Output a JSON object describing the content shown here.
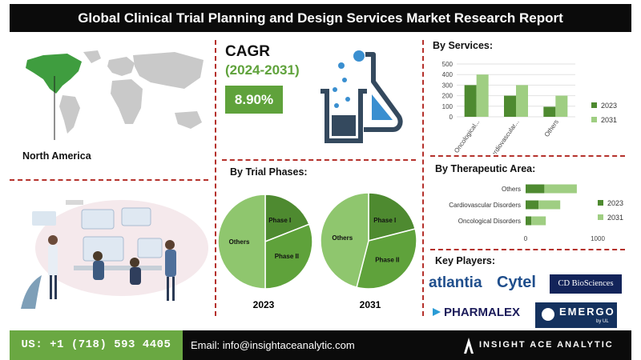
{
  "header": {
    "title": "Global Clinical Trial Planning and Design Services Market Research Report"
  },
  "region": {
    "label": "North America"
  },
  "cagr": {
    "title": "CAGR",
    "years": "(2024-2031)",
    "value": "8.90%"
  },
  "trial_phases": {
    "title": "By Trial Phases:"
  },
  "services": {
    "title": "By Services:"
  },
  "therapeutic": {
    "title": "By Therapeutic Area:"
  },
  "key_players": {
    "title": "Key Players:",
    "logos": [
      "atlantia",
      "Cytel",
      "CD BioSciences",
      "PHARMALEX",
      "EMERGO"
    ],
    "emergo_sub": "by UL"
  },
  "footer": {
    "phone": "US: +1 (718) 593 4405",
    "email": "Email: info@insightaceanalytic.com",
    "brand": "INSIGHT ACE ANALYTIC"
  },
  "colors": {
    "dark_green": "#4e8a30",
    "light_green": "#8fc66e",
    "accent_green": "#5fa23b",
    "divider_red": "#b5312c"
  },
  "chart_data": [
    {
      "type": "bar",
      "title": "By Services:",
      "categories": [
        "Oncological...",
        "Cardiovascular...",
        "Others"
      ],
      "series": [
        {
          "name": "2023",
          "values": [
            300,
            200,
            95
          ],
          "color": "#4e8a30"
        },
        {
          "name": "2031",
          "values": [
            400,
            300,
            200
          ],
          "color": "#9fce82"
        }
      ],
      "ylim": [
        0,
        500
      ],
      "yticks": [
        "0",
        "100",
        "200",
        "300",
        "400",
        "500"
      ],
      "legend": "right",
      "grid": true
    },
    {
      "type": "bar",
      "orientation": "horizontal",
      "title": "By Therapeutic Area:",
      "categories": [
        "Oncological Disorders",
        "Cardiovascular Disorders",
        "Others"
      ],
      "series": [
        {
          "name": "2023",
          "values": [
            80,
            180,
            260
          ],
          "color": "#4e8a30"
        },
        {
          "name": "2031",
          "values": [
            200,
            300,
            450
          ],
          "color": "#9fce82"
        }
      ],
      "stacked": true,
      "xlim": [
        0,
        1200
      ],
      "xticks": [
        "0",
        "1000"
      ],
      "legend": "right"
    },
    {
      "type": "pie",
      "label": "2023",
      "slices": [
        {
          "name": "Phase I",
          "value": 19,
          "color": "#4e8a30"
        },
        {
          "name": "Phase II",
          "value": 31,
          "color": "#5fa23b"
        },
        {
          "name": "Others",
          "value": 50,
          "color": "#8fc66e"
        }
      ]
    },
    {
      "type": "pie",
      "label": "2031",
      "slices": [
        {
          "name": "Phase I",
          "value": 21,
          "color": "#4e8a30"
        },
        {
          "name": "Phase II",
          "value": 33,
          "color": "#5fa23b"
        },
        {
          "name": "Others",
          "value": 46,
          "color": "#8fc66e"
        }
      ]
    }
  ]
}
